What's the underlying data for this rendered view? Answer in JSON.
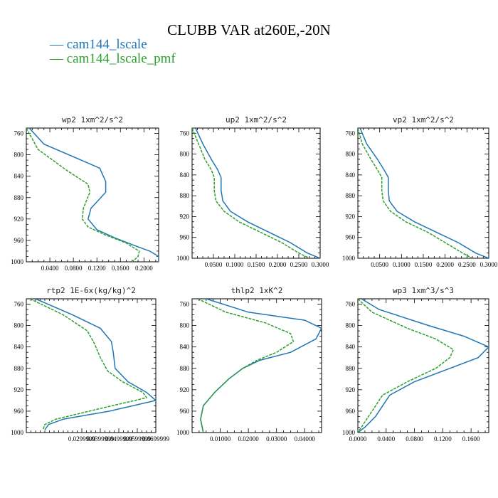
{
  "title": "CLUBB VAR at260E,-20N",
  "legend": [
    {
      "label": "cam144_lscale",
      "color": "#1f77b4"
    },
    {
      "label": "cam144_lscale_pmf",
      "color": "#2ca02c"
    }
  ],
  "chart_data": [
    {
      "type": "line",
      "title": "wp2   1xm^2/s^2",
      "ylim": [
        1000,
        750
      ],
      "y_inverted": true,
      "xlim": [
        0.0,
        0.225
      ],
      "yticks": [
        "760",
        "800",
        "840",
        "880",
        "920",
        "960",
        "1000"
      ],
      "xticks": [
        "0.0400",
        "0.0800",
        "0.1200",
        "0.1600",
        "0.2000"
      ],
      "series": [
        {
          "color": "#1f77b4",
          "x": [
            0.005,
            0.03,
            0.125,
            0.135,
            0.135,
            0.11,
            0.105,
            0.12,
            0.15,
            0.185,
            0.21,
            0.225,
            0.225
          ],
          "y": [
            750,
            780,
            825,
            850,
            870,
            900,
            920,
            940,
            955,
            970,
            980,
            990,
            1000
          ]
        },
        {
          "color": "#2ca02c",
          "x": [
            0.0,
            0.02,
            0.07,
            0.105,
            0.108,
            0.097,
            0.095,
            0.105,
            0.135,
            0.17,
            0.192,
            0.19,
            0.18
          ],
          "y": [
            750,
            790,
            830,
            855,
            870,
            900,
            920,
            935,
            950,
            965,
            980,
            990,
            1000
          ]
        }
      ]
    },
    {
      "type": "line",
      "title": "up2   1xm^2/s^2",
      "ylim": [
        1000,
        750
      ],
      "y_inverted": true,
      "xlim": [
        0.0,
        0.3
      ],
      "yticks": [
        "760",
        "800",
        "840",
        "880",
        "920",
        "960",
        "1000"
      ],
      "xticks": [
        "0.0500",
        "0.1000",
        "0.1500",
        "0.2000",
        "0.2500",
        "0.3000"
      ],
      "series": [
        {
          "color": "#1f77b4",
          "x": [
            0.008,
            0.025,
            0.045,
            0.06,
            0.068,
            0.068,
            0.072,
            0.09,
            0.13,
            0.18,
            0.23,
            0.27,
            0.3
          ],
          "y": [
            750,
            780,
            810,
            830,
            845,
            870,
            890,
            910,
            930,
            950,
            970,
            990,
            1000
          ]
        },
        {
          "color": "#2ca02c",
          "x": [
            0.0,
            0.015,
            0.03,
            0.045,
            0.052,
            0.052,
            0.056,
            0.075,
            0.11,
            0.16,
            0.21,
            0.25,
            0.275
          ],
          "y": [
            750,
            780,
            810,
            830,
            845,
            870,
            890,
            910,
            930,
            950,
            970,
            990,
            1000
          ]
        }
      ]
    },
    {
      "type": "line",
      "title": "vp2   1xm^2/s^2",
      "ylim": [
        1000,
        750
      ],
      "y_inverted": true,
      "xlim": [
        0.0,
        0.3
      ],
      "yticks": [
        "760",
        "800",
        "840",
        "880",
        "920",
        "960",
        "1000"
      ],
      "xticks": [
        "0.0500",
        "0.1000",
        "0.1500",
        "0.2000",
        "0.2500",
        "0.3000"
      ],
      "series": [
        {
          "color": "#1f77b4",
          "x": [
            0.005,
            0.02,
            0.045,
            0.06,
            0.07,
            0.07,
            0.072,
            0.09,
            0.13,
            0.18,
            0.23,
            0.27,
            0.3
          ],
          "y": [
            750,
            780,
            810,
            830,
            845,
            870,
            890,
            910,
            930,
            950,
            970,
            990,
            1000
          ]
        },
        {
          "color": "#2ca02c",
          "x": [
            0.0,
            0.01,
            0.03,
            0.045,
            0.055,
            0.055,
            0.058,
            0.075,
            0.11,
            0.16,
            0.2,
            0.24,
            0.262
          ],
          "y": [
            750,
            780,
            810,
            830,
            845,
            870,
            890,
            910,
            930,
            950,
            970,
            990,
            1000
          ]
        }
      ]
    },
    {
      "type": "line",
      "title": "rtp2   1E-6x(kg/kg)^2",
      "ylim": [
        1000,
        750
      ],
      "y_inverted": true,
      "xlim": [
        0.0,
        0.07
      ],
      "yticks": [
        "760",
        "800",
        "840",
        "880",
        "920",
        "960",
        "1000"
      ],
      "xticks": [
        "0.0299999",
        "0.0399999",
        "0.0499999",
        "0.0599999",
        "0.0699999"
      ],
      "series": [
        {
          "color": "#1f77b4",
          "x": [
            0.005,
            0.025,
            0.04,
            0.046,
            0.047,
            0.048,
            0.055,
            0.065,
            0.07,
            0.045,
            0.02,
            0.012,
            0.01
          ],
          "y": [
            750,
            780,
            805,
            830,
            850,
            880,
            905,
            925,
            940,
            960,
            975,
            985,
            995
          ]
        },
        {
          "color": "#2ca02c",
          "x": [
            0.002,
            0.02,
            0.033,
            0.037,
            0.04,
            0.044,
            0.052,
            0.063,
            0.065,
            0.04,
            0.016,
            0.01,
            0.009
          ],
          "y": [
            750,
            780,
            810,
            835,
            860,
            885,
            905,
            925,
            935,
            955,
            975,
            985,
            995
          ]
        }
      ]
    },
    {
      "type": "line",
      "title": "thlp2   1xK^2",
      "ylim": [
        1000,
        750
      ],
      "y_inverted": true,
      "xlim": [
        0.0,
        0.046
      ],
      "yticks": [
        "760",
        "800",
        "840",
        "880",
        "920",
        "960",
        "1000"
      ],
      "xticks": [
        "0.01000",
        "0.02000",
        "0.03000",
        "0.04000"
      ],
      "series": [
        {
          "color": "#1f77b4",
          "x": [
            0.005,
            0.02,
            0.04,
            0.046,
            0.044,
            0.035,
            0.024,
            0.018,
            0.013,
            0.008,
            0.004,
            0.003,
            0.004
          ],
          "y": [
            750,
            775,
            790,
            805,
            825,
            850,
            865,
            880,
            900,
            925,
            950,
            975,
            1000
          ]
        },
        {
          "color": "#2ca02c",
          "x": [
            0.002,
            0.012,
            0.026,
            0.035,
            0.036,
            0.03,
            0.023,
            0.018,
            0.013,
            0.008,
            0.004,
            0.003,
            0.004
          ],
          "y": [
            750,
            775,
            795,
            815,
            830,
            850,
            865,
            880,
            900,
            925,
            950,
            975,
            1000
          ]
        }
      ]
    },
    {
      "type": "line",
      "title": "wp3   1xm^3/s^3",
      "ylim": [
        1000,
        750
      ],
      "y_inverted": true,
      "xlim": [
        0.0,
        0.185
      ],
      "yticks": [
        "760",
        "800",
        "840",
        "880",
        "920",
        "960",
        "1000"
      ],
      "xticks": [
        "0.0000",
        "0.0400",
        "0.0800",
        "0.1200",
        "0.1600"
      ],
      "series": [
        {
          "color": "#1f77b4",
          "x": [
            0.005,
            0.03,
            0.1,
            0.15,
            0.185,
            0.17,
            0.13,
            0.08,
            0.045,
            0.035,
            0.025,
            0.01,
            0.0
          ],
          "y": [
            750,
            770,
            800,
            820,
            840,
            860,
            880,
            905,
            930,
            950,
            970,
            990,
            1000
          ]
        },
        {
          "color": "#2ca02c",
          "x": [
            0.0,
            0.02,
            0.07,
            0.11,
            0.135,
            0.13,
            0.11,
            0.07,
            0.035,
            0.025,
            0.015,
            0.005,
            0.0
          ],
          "y": [
            750,
            775,
            805,
            825,
            845,
            860,
            880,
            905,
            930,
            950,
            970,
            990,
            1000
          ]
        }
      ]
    }
  ]
}
